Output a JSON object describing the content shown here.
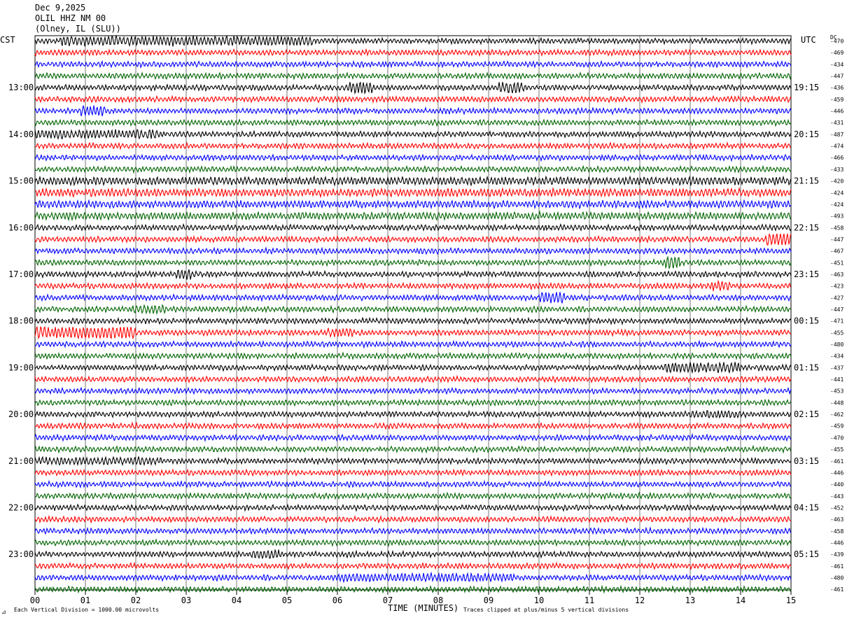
{
  "header": {
    "date": "Dec 9,2025",
    "station": "OLIL HHZ NM 00",
    "location": "(Olney, IL (SLU))"
  },
  "left_zone": "CST",
  "right_zone": "UTC",
  "dc_label": "DC",
  "footer": {
    "scale_note": "Each Vertical Division = 1000.00 microvolts",
    "xlabel": "TIME (MINUTES)",
    "clip_note": "Traces clipped at plus/minus 5 vertical divisions"
  },
  "colors": [
    "#000000",
    "#ff0000",
    "#0000ff",
    "#006400"
  ],
  "chart_data": {
    "type": "line",
    "title": "OLIL HHZ NM 00",
    "xlabel": "TIME (MINUTES)",
    "ylabel": "",
    "x_ticks": [
      "00",
      "01",
      "02",
      "03",
      "04",
      "05",
      "06",
      "07",
      "08",
      "09",
      "10",
      "11",
      "12",
      "13",
      "14",
      "15"
    ],
    "xlim": [
      0,
      15
    ],
    "grid": true,
    "lines_per_hour": 4,
    "left_hour_labels": [
      "13:00",
      "14:00",
      "15:00",
      "16:00",
      "17:00",
      "18:00",
      "19:00",
      "20:00",
      "21:00",
      "22:00",
      "23:00"
    ],
    "right_hour_labels": [
      "19:15",
      "20:15",
      "21:15",
      "22:15",
      "23:15",
      "00:15",
      "01:15",
      "02:15",
      "03:15",
      "04:15",
      "05:15"
    ],
    "dc_offsets": [
      -470,
      -469,
      -434,
      -447,
      -436,
      -459,
      -446,
      -431,
      -487,
      -474,
      -466,
      -433,
      -420,
      -424,
      -424,
      -493,
      -458,
      -447,
      -467,
      -451,
      -463,
      -423,
      -427,
      -447,
      -471,
      -455,
      -480,
      -434,
      -437,
      -441,
      -453,
      -448,
      -462,
      -459,
      -470,
      -455,
      -461,
      -446,
      -440,
      -443,
      -452,
      -463,
      -458,
      -446,
      -439,
      -461,
      -480,
      -461
    ],
    "events": [
      {
        "line": 0,
        "start_min": 0.5,
        "end_min": 5.5,
        "amp": 2.0
      },
      {
        "line": 4,
        "start_min": 6.2,
        "end_min": 6.7,
        "amp": 2.6
      },
      {
        "line": 4,
        "start_min": 9.2,
        "end_min": 9.7,
        "amp": 2.4
      },
      {
        "line": 6,
        "start_min": 0.9,
        "end_min": 1.4,
        "amp": 2.2
      },
      {
        "line": 8,
        "start_min": 0.0,
        "end_min": 2.5,
        "amp": 1.8
      },
      {
        "line": 12,
        "start_min": 0.0,
        "end_min": 15.0,
        "amp": 1.5
      },
      {
        "line": 13,
        "start_min": 0.0,
        "end_min": 15.0,
        "amp": 1.5
      },
      {
        "line": 14,
        "start_min": 0.0,
        "end_min": 15.0,
        "amp": 1.4
      },
      {
        "line": 15,
        "start_min": 0.0,
        "end_min": 15.0,
        "amp": 1.4
      },
      {
        "line": 17,
        "start_min": 14.5,
        "end_min": 15.0,
        "amp": 3.0
      },
      {
        "line": 19,
        "start_min": 12.5,
        "end_min": 12.8,
        "amp": 3.2
      },
      {
        "line": 20,
        "start_min": 2.8,
        "end_min": 3.1,
        "amp": 2.2
      },
      {
        "line": 21,
        "start_min": 13.4,
        "end_min": 13.8,
        "amp": 2.0
      },
      {
        "line": 22,
        "start_min": 10.0,
        "end_min": 10.5,
        "amp": 2.4
      },
      {
        "line": 23,
        "start_min": 1.9,
        "end_min": 2.6,
        "amp": 1.8
      },
      {
        "line": 25,
        "start_min": 0.0,
        "end_min": 2.0,
        "amp": 2.6
      },
      {
        "line": 25,
        "start_min": 5.8,
        "end_min": 6.3,
        "amp": 1.8
      },
      {
        "line": 28,
        "start_min": 12.5,
        "end_min": 14.0,
        "amp": 2.2
      },
      {
        "line": 32,
        "start_min": 13.0,
        "end_min": 14.0,
        "amp": 1.6
      },
      {
        "line": 36,
        "start_min": 0.0,
        "end_min": 2.5,
        "amp": 1.6
      },
      {
        "line": 44,
        "start_min": 4.3,
        "end_min": 4.9,
        "amp": 1.8
      },
      {
        "line": 46,
        "start_min": 6.0,
        "end_min": 9.5,
        "amp": 1.7
      }
    ]
  }
}
